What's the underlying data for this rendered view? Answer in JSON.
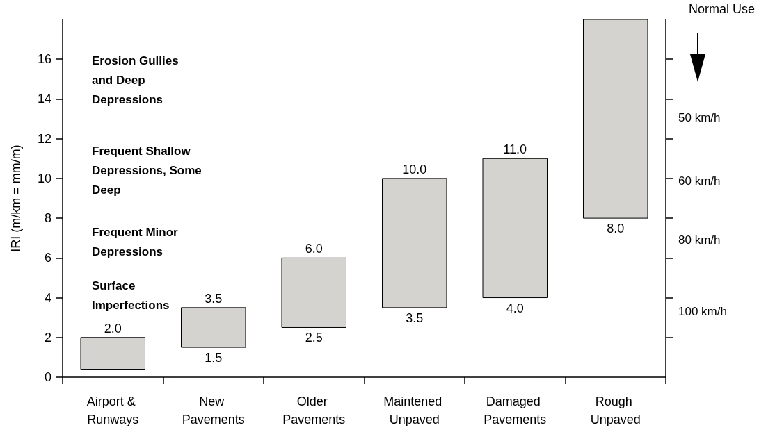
{
  "chart_data": {
    "type": "bar",
    "categories": [
      "Airport & Runways",
      "New Pavements",
      "Older Pavements",
      "Maintened Unpaved",
      "Damaged Pavements",
      "Rough Unpaved"
    ],
    "base": [
      0.4,
      1.5,
      2.5,
      3.5,
      4.0,
      8.0
    ],
    "values": [
      1.6,
      2.0,
      3.5,
      6.5,
      7.0,
      10.0
    ],
    "color": "#d4d3cf",
    "ylabel": "IRI (m/km = mm/m)",
    "y2label": "Normal Use",
    "ylim": [
      0,
      18
    ],
    "yticks": [
      0,
      2,
      4,
      6,
      8,
      10,
      12,
      14,
      16
    ],
    "grid": false,
    "annotations": [
      "Erosion Gullies and Deep Depressions",
      "Frequent Shallow Depressions, Some Deep",
      "Frequent Minor Depressions",
      "Surface Imperfections",
      "50 km/h",
      "60 km/h",
      "80 km/h",
      "100 km/h",
      {
        "text": "2.0",
        "x": "Airport & Runways",
        "y": 2.0
      },
      {
        "text": "3.5",
        "x": "New Pavements",
        "y": 3.5
      },
      {
        "text": "1.5",
        "x": "New Pavements",
        "y": 1.5
      },
      {
        "text": "6.0",
        "x": "Older Pavements",
        "y": 6.0
      },
      {
        "text": "2.5",
        "x": "Older Pavements",
        "y": 2.5
      },
      {
        "text": "10.0",
        "x": "Maintened Unpaved",
        "y": 10.0
      },
      {
        "text": "3.5",
        "x": "Maintened Unpaved",
        "y": 3.5
      },
      {
        "text": "11.0",
        "x": "Damaged Pavements",
        "y": 11.0
      },
      {
        "text": "4.0",
        "x": "Damaged Pavements",
        "y": 4.0
      },
      {
        "text": "8.0",
        "x": "Rough Unpaved",
        "y": 8.0
      }
    ]
  }
}
